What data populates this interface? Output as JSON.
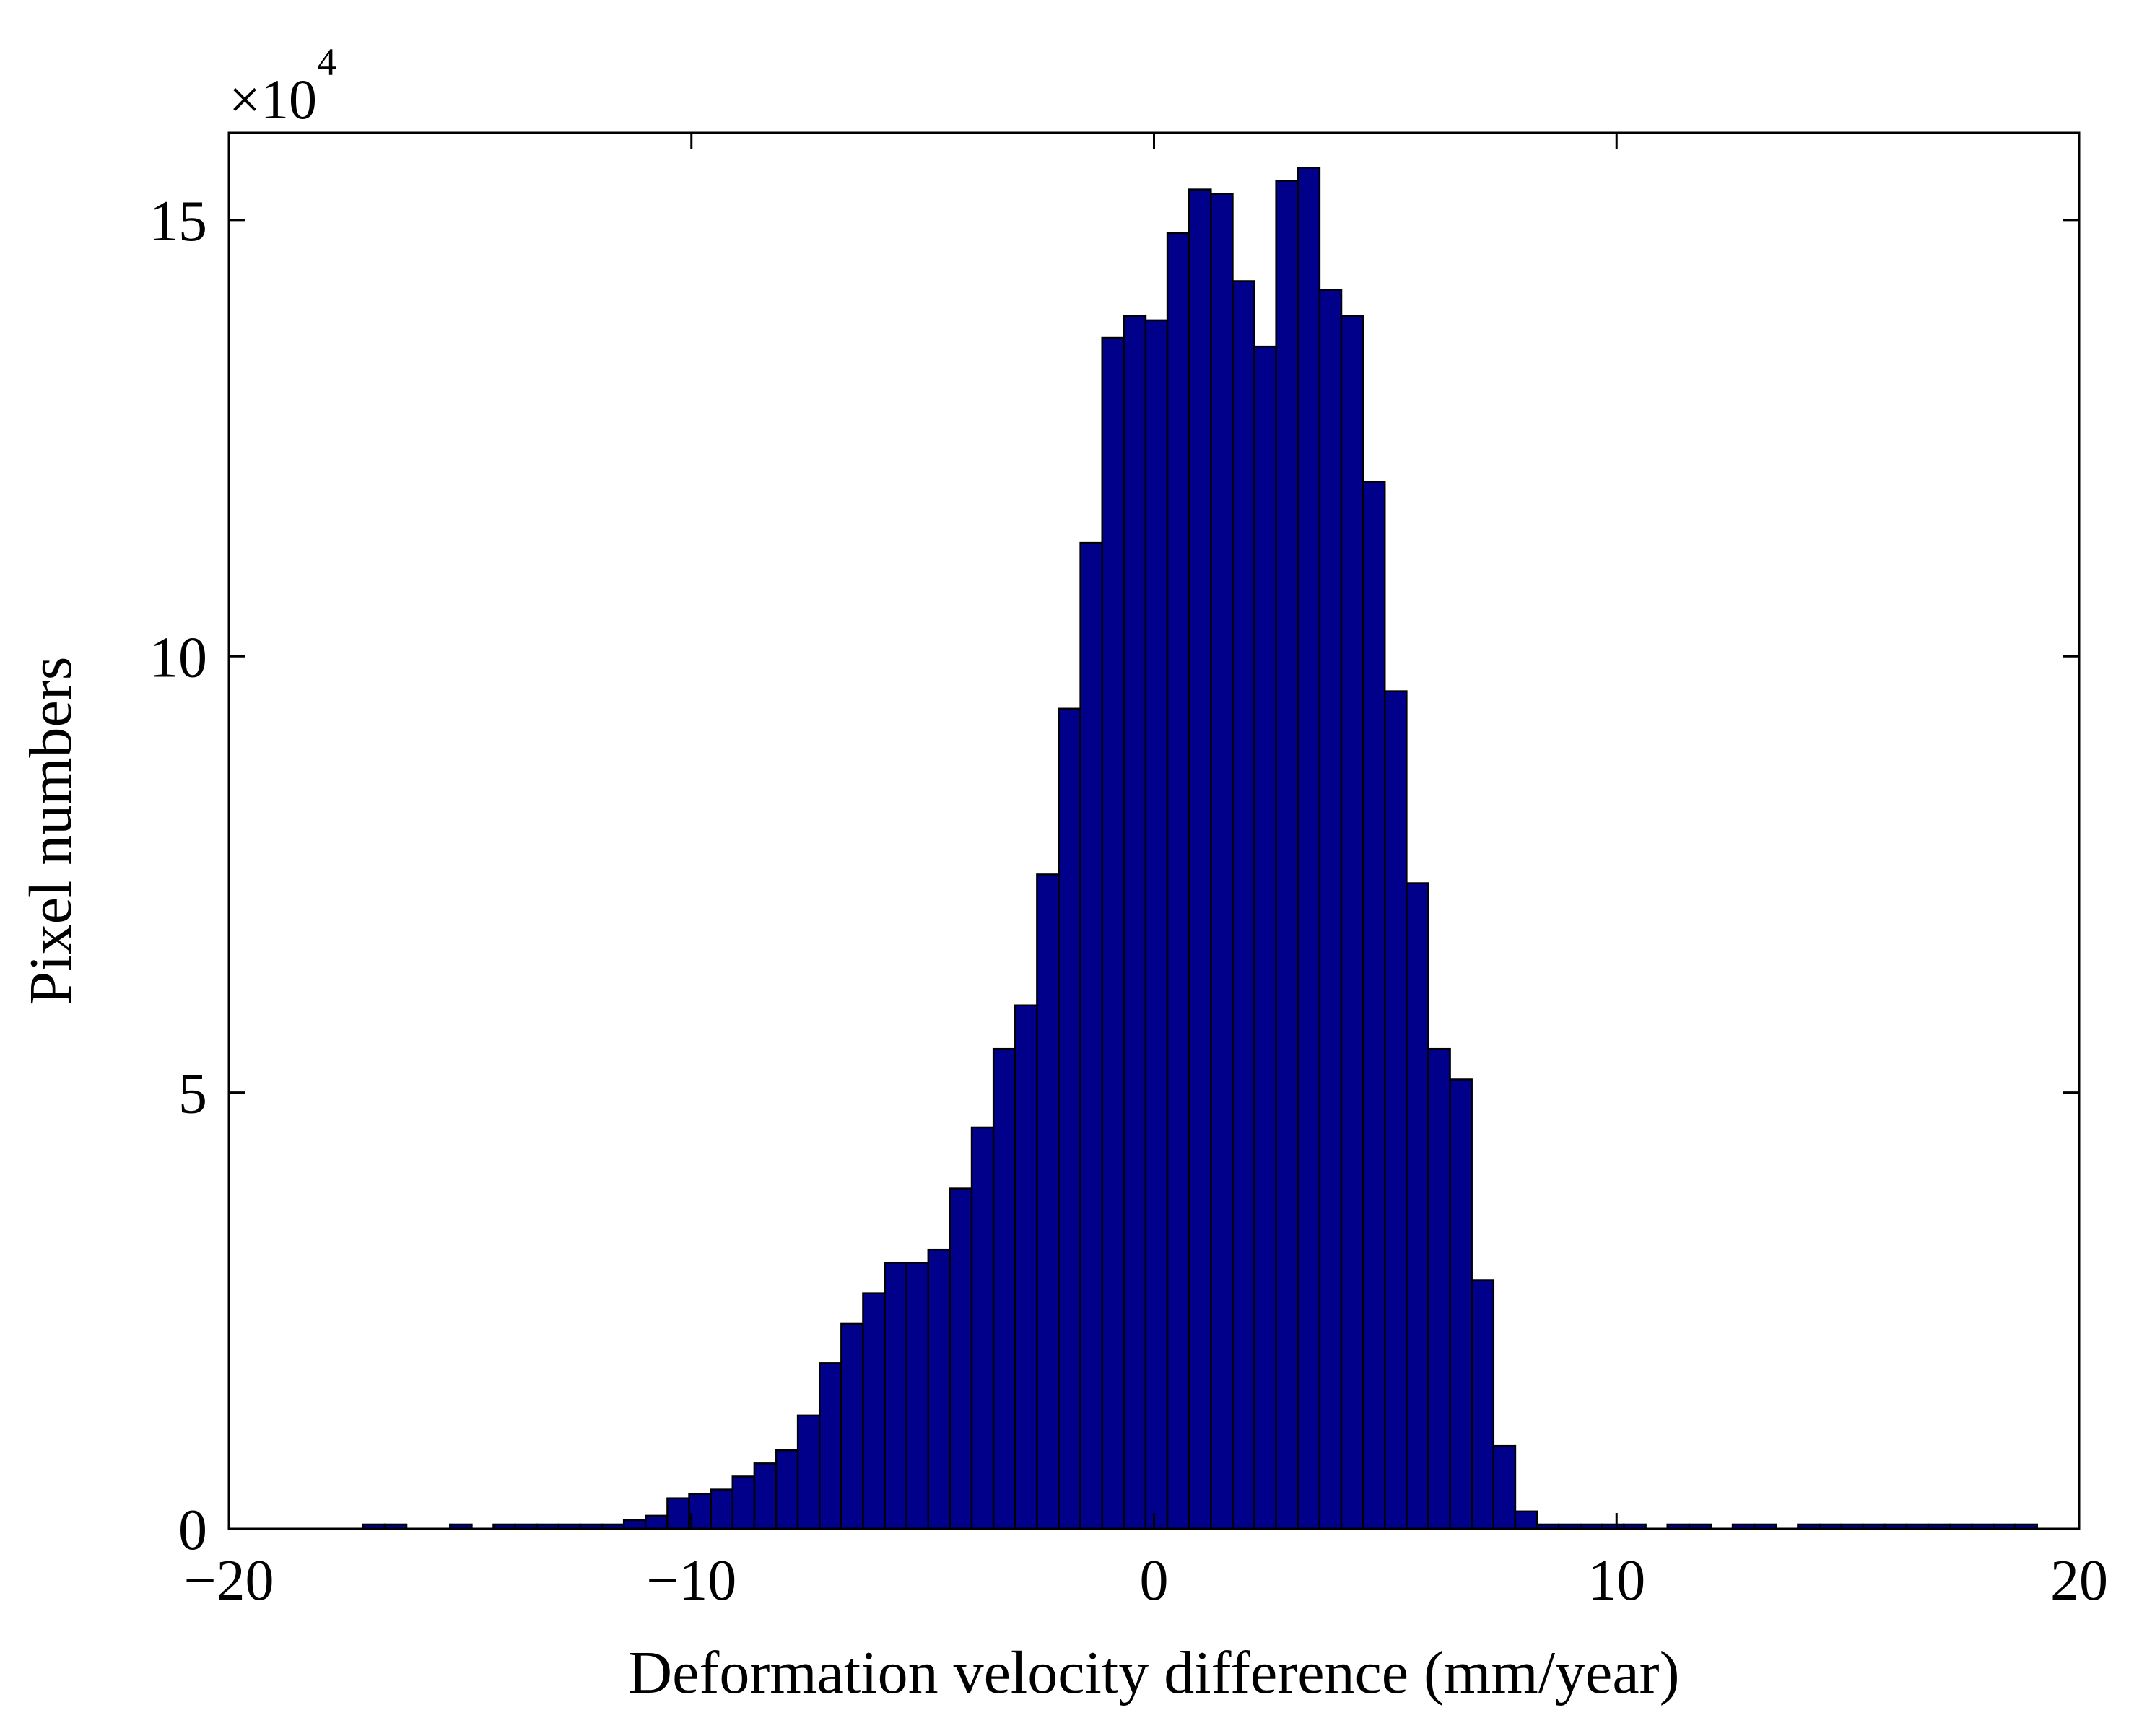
{
  "chart_data": {
    "type": "bar",
    "title": "",
    "xlabel": "Deformation velocity difference (mm/year)",
    "ylabel": "Pixel numbers",
    "y_multiplier_prefix": "×10",
    "y_multiplier_exponent": "4",
    "xlim": [
      -20,
      20
    ],
    "ylim": [
      0,
      16
    ],
    "x_ticks": [
      {
        "value": -20,
        "label": "−20"
      },
      {
        "value": -10,
        "label": "−10"
      },
      {
        "value": 0,
        "label": "0"
      },
      {
        "value": 10,
        "label": "10"
      },
      {
        "value": 20,
        "label": "20"
      }
    ],
    "y_ticks": [
      {
        "value": 0,
        "label": "0"
      },
      {
        "value": 5,
        "label": "5"
      },
      {
        "value": 10,
        "label": "10"
      },
      {
        "value": 15,
        "label": "15"
      }
    ],
    "bin_width": 0.47,
    "bin_start": -17.1,
    "bar_color": "#00008b",
    "values": [
      0.05,
      0.05,
      0.0,
      0.0,
      0.05,
      0.0,
      0.05,
      0.05,
      0.05,
      0.05,
      0.05,
      0.05,
      0.1,
      0.15,
      0.35,
      0.4,
      0.45,
      0.6,
      0.75,
      0.9,
      1.3,
      1.9,
      2.35,
      2.7,
      3.05,
      3.05,
      3.2,
      3.9,
      4.6,
      5.5,
      6.0,
      7.5,
      9.4,
      11.3,
      13.65,
      13.9,
      13.85,
      14.85,
      15.35,
      15.3,
      14.3,
      13.55,
      15.45,
      15.6,
      14.2,
      13.9,
      12.0,
      9.6,
      7.4,
      5.5,
      5.15,
      2.85,
      0.95,
      0.2,
      0.05,
      0.05,
      0.05,
      0.05,
      0.05,
      0.0,
      0.05,
      0.05,
      0.0,
      0.05,
      0.05,
      0.0,
      0.05,
      0.05,
      0.05,
      0.05,
      0.05,
      0.05,
      0.05,
      0.05,
      0.05,
      0.05,
      0.05
    ]
  }
}
